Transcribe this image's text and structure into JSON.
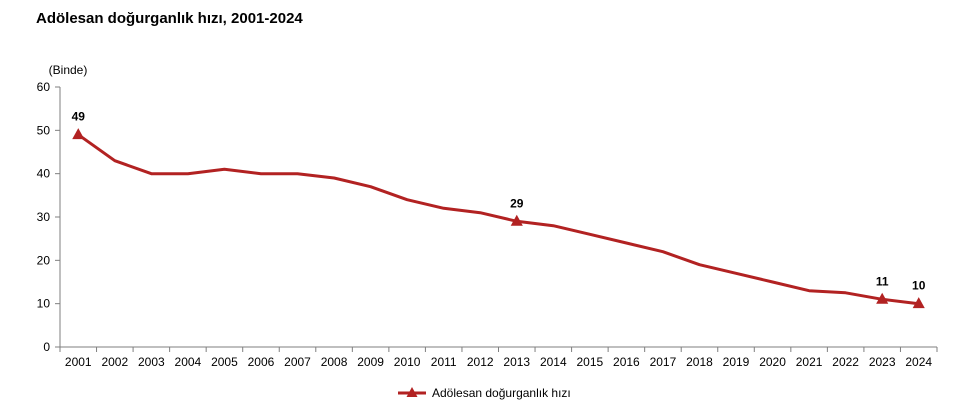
{
  "title": "Adölesan doğurganlık hızı, 2001-2024",
  "chart_data": {
    "type": "line",
    "title": "Adölesan doğurganlık hızı, 2001-2024",
    "ylabel": "(Binde)",
    "xlabel": "",
    "ylim": [
      0,
      60
    ],
    "yticks": [
      0,
      10,
      20,
      30,
      40,
      50,
      60
    ],
    "grid": false,
    "legend_position": "bottom-center",
    "categories": [
      "2001",
      "2002",
      "2003",
      "2004",
      "2005",
      "2006",
      "2007",
      "2008",
      "2009",
      "2010",
      "2011",
      "2012",
      "2013",
      "2014",
      "2015",
      "2016",
      "2017",
      "2018",
      "2019",
      "2020",
      "2021",
      "2022",
      "2023",
      "2024"
    ],
    "series": [
      {
        "name": "Adölesan doğurganlık hızı",
        "color": "#b22222",
        "values": [
          49,
          43,
          40,
          40,
          41,
          40,
          40,
          39,
          37,
          34,
          32,
          31,
          29,
          28,
          26,
          24,
          22,
          19,
          17,
          15,
          13,
          12.5,
          11,
          10
        ]
      }
    ],
    "data_labels": [
      {
        "category": "2001",
        "text": "49"
      },
      {
        "category": "2013",
        "text": "29"
      },
      {
        "category": "2023",
        "text": "11"
      },
      {
        "category": "2024",
        "text": "10"
      }
    ]
  }
}
